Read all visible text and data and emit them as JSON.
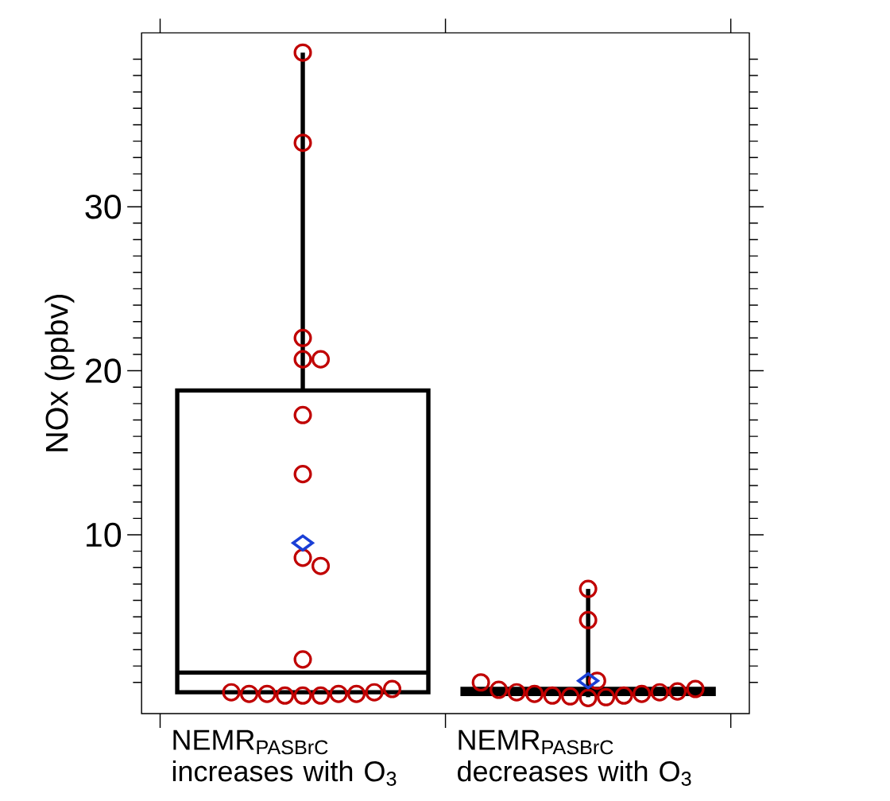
{
  "chart_data": {
    "type": "box",
    "categories": [
      "NEMR$_{PASBrC}$ increases with O$_{3}$",
      "NEMR$_{PASBrC}$ decreases with O$_{3}$"
    ],
    "ylabel": "NOx (ppbv)",
    "ylim": [
      -0.9,
      40.6
    ],
    "yticks": [
      {
        "value": 1,
        "label": null
      },
      {
        "value": 2,
        "label": null
      },
      {
        "value": 3,
        "label": null
      },
      {
        "value": 4,
        "label": null
      },
      {
        "value": 5,
        "label": null
      },
      {
        "value": 6,
        "label": null
      },
      {
        "value": 7,
        "label": null
      },
      {
        "value": 8,
        "label": null
      },
      {
        "value": 9,
        "label": null
      },
      10,
      {
        "value": 11,
        "label": null
      },
      {
        "value": 12,
        "label": null
      },
      {
        "value": 13,
        "label": null
      },
      {
        "value": 14,
        "label": null
      },
      {
        "value": 15,
        "label": null
      },
      {
        "value": 16,
        "label": null
      },
      {
        "value": 17,
        "label": null
      },
      {
        "value": 18,
        "label": null
      },
      {
        "value": 19,
        "label": null
      },
      20,
      {
        "value": 21,
        "label": null
      },
      {
        "value": 22,
        "label": null
      },
      {
        "value": 23,
        "label": null
      },
      {
        "value": 24,
        "label": null
      },
      {
        "value": 25,
        "label": null
      },
      {
        "value": 26,
        "label": null
      },
      {
        "value": 27,
        "label": null
      },
      {
        "value": 28,
        "label": null
      },
      {
        "value": 29,
        "label": null
      },
      30,
      {
        "value": 31,
        "label": null
      },
      {
        "value": 32,
        "label": null
      },
      {
        "value": 33,
        "label": null
      },
      {
        "value": 34,
        "label": null
      },
      {
        "value": 35,
        "label": null
      },
      {
        "value": 36,
        "label": null
      },
      {
        "value": 37,
        "label": null
      },
      {
        "value": 38,
        "label": null
      },
      {
        "value": 39,
        "label": null
      }
    ],
    "series": [
      {
        "color": "#000000",
        "boxes": [
          {
            "low": 0.4,
            "q1": 0.4,
            "median": 1.6,
            "q3": 18.8,
            "high": 39.4,
            "mean": 9.5
          },
          {
            "low": 0.1,
            "q1": 0.3,
            "median": 0.4,
            "q3": 0.6,
            "high": 6.7,
            "mean": 1.1
          }
        ]
      },
      {
        "type": "scatter",
        "color": "#c00000",
        "marker": "circle",
        "x": [
          "NEMR$_{PASBrC}$ increases with O$_{3}$",
          "NEMR$_{PASBrC}$ increases with O$_{3}$",
          "NEMR$_{PASBrC}$ increases with O$_{3}$",
          "NEMR$_{PASBrC}$ increases with O$_{3}$",
          "NEMR$_{PASBrC}$ increases with O$_{3}$",
          "NEMR$_{PASBrC}$ increases with O$_{3}$",
          "NEMR$_{PASBrC}$ increases with O$_{3}$",
          "NEMR$_{PASBrC}$ increases with O$_{3}$",
          "NEMR$_{PASBrC}$ increases with O$_{3}$",
          "NEMR$_{PASBrC}$ increases with O$_{3}$",
          "NEMR$_{PASBrC}$ increases with O$_{3}$",
          "NEMR$_{PASBrC}$ increases with O$_{3}$",
          "NEMR$_{PASBrC}$ increases with O$_{3}$",
          "NEMR$_{PASBrC}$ increases with O$_{3}$",
          "NEMR$_{PASBrC}$ increases with O$_{3}$",
          "NEMR$_{PASBrC}$ increases with O$_{3}$",
          "NEMR$_{PASBrC}$ increases with O$_{3}$",
          "NEMR$_{PASBrC}$ increases with O$_{3}$",
          "NEMR$_{PASBrC}$ increases with O$_{3}$",
          "NEMR$_{PASBrC}$ increases with O$_{3}$",
          "NEMR$_{PASBrC}$ decreases with O$_{3}$",
          "NEMR$_{PASBrC}$ decreases with O$_{3}$",
          "NEMR$_{PASBrC}$ decreases with O$_{3}$",
          "NEMR$_{PASBrC}$ decreases with O$_{3}$",
          "NEMR$_{PASBrC}$ decreases with O$_{3}$",
          "NEMR$_{PASBrC}$ decreases with O$_{3}$",
          "NEMR$_{PASBrC}$ decreases with O$_{3}$",
          "NEMR$_{PASBrC}$ decreases with O$_{3}$",
          "NEMR$_{PASBrC}$ decreases with O$_{3}$",
          "NEMR$_{PASBrC}$ decreases with O$_{3}$",
          "NEMR$_{PASBrC}$ decreases with O$_{3}$",
          "NEMR$_{PASBrC}$ decreases with O$_{3}$",
          "NEMR$_{PASBrC}$ decreases with O$_{3}$",
          "NEMR$_{PASBrC}$ decreases with O$_{3}$",
          "NEMR$_{PASBrC}$ decreases with O$_{3}$",
          "NEMR$_{PASBrC}$ decreases with O$_{3}$"
        ],
        "values": [
          39.4,
          33.9,
          22.0,
          20.7,
          20.7,
          17.3,
          13.7,
          8.6,
          8.1,
          2.4,
          0.2,
          0.2,
          0.2,
          0.3,
          0.3,
          0.3,
          0.3,
          0.4,
          0.4,
          0.6,
          6.7,
          4.8,
          0.05,
          0.1,
          0.15,
          0.2,
          0.2,
          0.3,
          0.3,
          0.4,
          0.4,
          0.45,
          0.55,
          0.6,
          1.0,
          1.1
        ]
      }
    ]
  }
}
